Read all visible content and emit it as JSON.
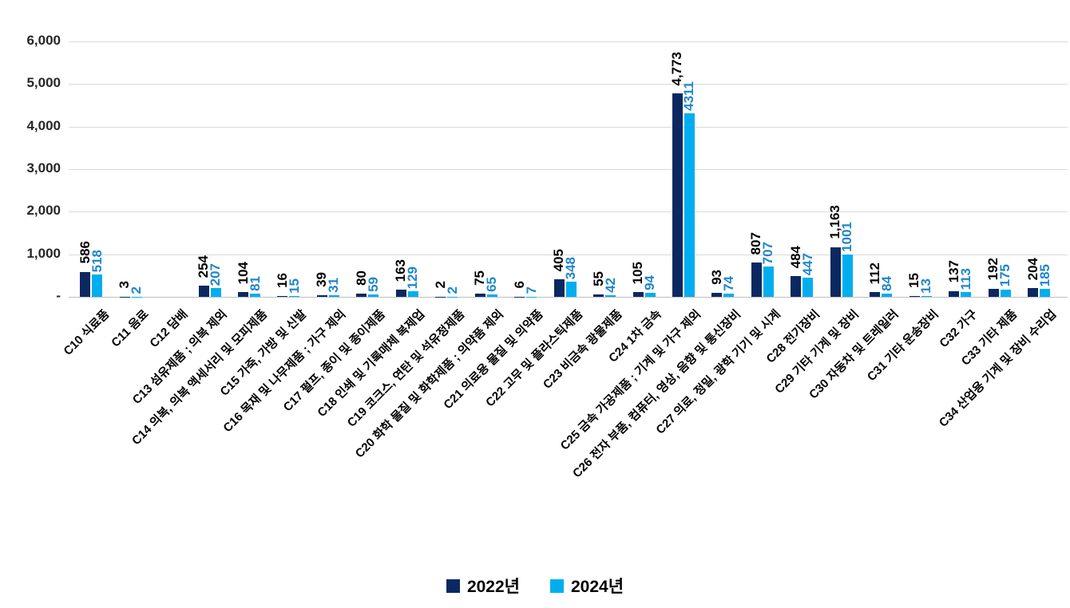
{
  "chart_data": {
    "type": "bar",
    "title": "",
    "xlabel": "",
    "ylabel": "",
    "ylim": [
      0,
      6000
    ],
    "grid": true,
    "legend_position": "bottom",
    "y_ticks": [
      "-",
      "1,000",
      "2,000",
      "3,000",
      "4,000",
      "5,000",
      "6,000"
    ],
    "categories": [
      "C10 식료품",
      "C11 음료",
      "C12 담배",
      "C13 섬유제품 ; 의복 제외",
      "C14 의복, 의복 액세서리 및 모피제품",
      "C15 가죽, 가방 및 신발",
      "C16 목재 및 나무제품 ; 가구 제외",
      "C17 펄프, 종이 및 종이제품",
      "C18 인쇄 및 기록매체 복제업",
      "C19 코크스, 연탄 및 석유정제품",
      "C20 화학 물질 및 화학제품 ; 의약품 제외",
      "C21 의료용 물질 및 의약품",
      "C22 고무 및 플라스틱제품",
      "C23 비금속 광물제품",
      "C24 1차 금속",
      "C25 금속 가공제품 ; 기계 및 가구 제외",
      "C26 전자 부품, 컴퓨터, 영상, 음향 및 통신장비",
      "C27 의료, 정밀, 광학 기기 및 시계",
      "C28 전기장비",
      "C29 기타 기계 및 장비",
      "C30 자동차 및 트레일러",
      "C31 기타 운송장비",
      "C32 가구",
      "C33 기타 제품",
      "C34 산업용 기계 및 장비 수리업"
    ],
    "series": [
      {
        "name": "2022년",
        "color": "#0C2861",
        "label_color": "#000000",
        "values": [
          586,
          3,
          null,
          254,
          104,
          16,
          39,
          80,
          163,
          2,
          75,
          6,
          405,
          55,
          105,
          4773,
          93,
          807,
          484,
          1163,
          112,
          15,
          137,
          192,
          204
        ],
        "labels": [
          "586",
          "3",
          "",
          "254",
          "104",
          "16",
          "39",
          "80",
          "163",
          "2",
          "75",
          "6",
          "405",
          "55",
          "105",
          "4,773",
          "93",
          "807",
          "484",
          "1,163",
          "112",
          "15",
          "137",
          "192",
          "204"
        ]
      },
      {
        "name": "2024년",
        "color": "#00AEEF",
        "label_color": "#1F86C9",
        "values": [
          518,
          2,
          null,
          207,
          81,
          15,
          31,
          59,
          129,
          2,
          65,
          7,
          348,
          42,
          94,
          4311,
          74,
          707,
          447,
          1001,
          84,
          13,
          113,
          175,
          185
        ],
        "labels": [
          "518",
          "2",
          "",
          "207",
          "81",
          "15",
          "31",
          "59",
          "129",
          "2",
          "65",
          "7",
          "348",
          "42",
          "94",
          "4311",
          "74",
          "707",
          "447",
          "1001",
          "84",
          "13",
          "113",
          "175",
          "185"
        ]
      }
    ],
    "axis_colors": {
      "grid": "#D9D9D9",
      "baseline": "#BFBFBF",
      "tick_text": "#262626"
    }
  }
}
